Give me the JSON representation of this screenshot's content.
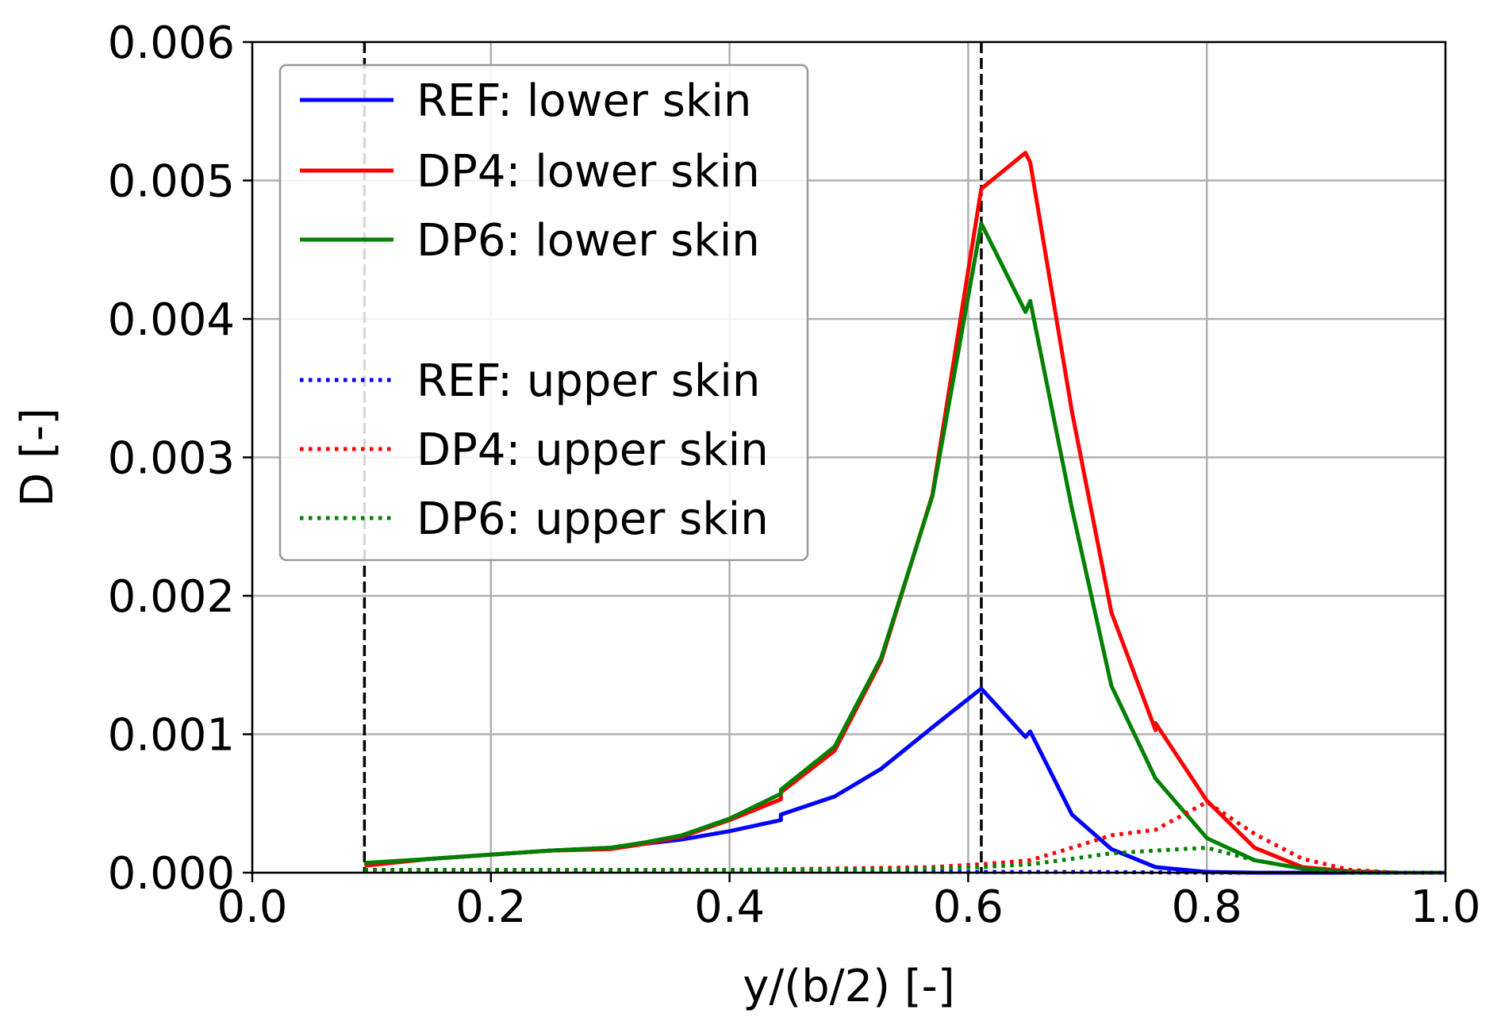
{
  "chart_data": {
    "type": "line",
    "title": "",
    "xlabel": "y/(b/2) [-]",
    "ylabel": "D [-]",
    "xlim": [
      0.0,
      1.0
    ],
    "ylim": [
      0.0,
      0.006
    ],
    "xticks": [
      "0.0",
      "0.2",
      "0.4",
      "0.6",
      "0.8",
      "1.0"
    ],
    "yticks": [
      "0.000",
      "0.001",
      "0.002",
      "0.003",
      "0.004",
      "0.005",
      "0.006"
    ],
    "xtick_values": [
      0.0,
      0.2,
      0.4,
      0.6,
      0.8,
      1.0
    ],
    "ytick_values": [
      0.0,
      0.001,
      0.002,
      0.003,
      0.004,
      0.005,
      0.006
    ],
    "grid": true,
    "legend_position": "top-left",
    "vlines": [
      {
        "x": 0.094,
        "style": "dashed",
        "color": "#000000"
      },
      {
        "x": 0.611,
        "style": "dashed",
        "color": "#000000"
      }
    ],
    "series": [
      {
        "name": "REF: lower skin",
        "color": "#0000ff",
        "style": "solid",
        "x": [
          0.094,
          0.15,
          0.2,
          0.25,
          0.3,
          0.36,
          0.4,
          0.443,
          0.443,
          0.488,
          0.527,
          0.57,
          0.611,
          0.648,
          0.652,
          0.687,
          0.72,
          0.757,
          0.8,
          0.84,
          0.88,
          0.92,
          0.96,
          1.0
        ],
        "values": [
          6e-05,
          0.0001,
          0.00013,
          0.00016,
          0.00018,
          0.00024,
          0.0003,
          0.00038,
          0.00042,
          0.00055,
          0.00075,
          0.00105,
          0.00133,
          0.00098,
          0.00102,
          0.00042,
          0.00017,
          4e-05,
          5e-06,
          0.0,
          0.0,
          0.0,
          0.0,
          0.0
        ]
      },
      {
        "name": "DP4: lower skin",
        "color": "#ff0000",
        "style": "solid",
        "x": [
          0.094,
          0.15,
          0.2,
          0.25,
          0.3,
          0.33,
          0.36,
          0.4,
          0.443,
          0.443,
          0.488,
          0.527,
          0.57,
          0.611,
          0.648,
          0.652,
          0.687,
          0.72,
          0.757,
          0.757,
          0.8,
          0.84,
          0.88,
          0.92,
          0.96,
          1.0
        ],
        "values": [
          5e-05,
          0.0001,
          0.00013,
          0.00016,
          0.00017,
          0.00021,
          0.00026,
          0.00038,
          0.00053,
          0.00058,
          0.00088,
          0.00153,
          0.00273,
          0.00494,
          0.0052,
          0.00513,
          0.00333,
          0.00188,
          0.00103,
          0.00108,
          0.00052,
          0.00018,
          4e-05,
          1e-05,
          0.0,
          0.0
        ]
      },
      {
        "name": "DP6: lower skin",
        "color": "#008000",
        "style": "solid",
        "x": [
          0.094,
          0.15,
          0.2,
          0.25,
          0.3,
          0.33,
          0.36,
          0.4,
          0.443,
          0.443,
          0.488,
          0.527,
          0.57,
          0.611,
          0.648,
          0.652,
          0.687,
          0.72,
          0.757,
          0.8,
          0.84,
          0.88,
          0.92,
          0.96,
          1.0
        ],
        "values": [
          7e-05,
          0.0001,
          0.00013,
          0.00016,
          0.00018,
          0.00022,
          0.00027,
          0.00039,
          0.00057,
          0.0006,
          0.00091,
          0.00155,
          0.00272,
          0.00469,
          0.00405,
          0.00413,
          0.00263,
          0.00135,
          0.00068,
          0.00025,
          9e-05,
          3e-05,
          0.0,
          0.0,
          0.0
        ]
      },
      {
        "name": "REF: upper skin",
        "color": "#0000ff",
        "style": "dotted",
        "x": [
          0.094,
          0.2,
          0.3,
          0.4,
          0.5,
          0.6,
          0.7,
          0.8,
          0.9,
          1.0
        ],
        "values": [
          1e-05,
          1e-05,
          1e-05,
          1e-05,
          1e-05,
          5e-06,
          5e-06,
          0.0,
          0.0,
          0.0
        ]
      },
      {
        "name": "DP4: upper skin",
        "color": "#ff0000",
        "style": "dotted",
        "x": [
          0.094,
          0.2,
          0.33,
          0.4,
          0.488,
          0.57,
          0.611,
          0.652,
          0.687,
          0.72,
          0.757,
          0.8,
          0.84,
          0.88,
          0.92,
          0.96,
          1.0
        ],
        "values": [
          2e-05,
          2e-05,
          2e-05,
          2e-05,
          3e-05,
          4e-05,
          6e-05,
          9e-05,
          0.00018,
          0.00027,
          0.00031,
          0.00051,
          0.00028,
          0.0001,
          2e-05,
          0.0,
          0.0
        ]
      },
      {
        "name": "DP6: upper skin",
        "color": "#008000",
        "style": "dotted",
        "x": [
          0.094,
          0.2,
          0.33,
          0.4,
          0.488,
          0.57,
          0.611,
          0.652,
          0.687,
          0.72,
          0.757,
          0.8,
          0.84,
          0.88,
          0.92,
          0.96,
          1.0
        ],
        "values": [
          2e-05,
          2e-05,
          2e-05,
          2e-05,
          2e-05,
          3e-05,
          4e-05,
          6e-05,
          0.0001,
          0.00014,
          0.00016,
          0.00018,
          9e-05,
          3e-05,
          1e-05,
          0.0,
          0.0
        ]
      }
    ]
  }
}
